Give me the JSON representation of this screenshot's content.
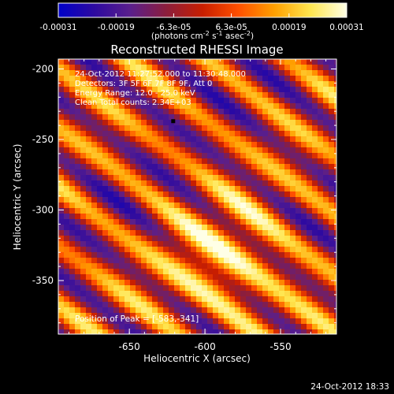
{
  "colorbar": {
    "ticks": [
      "-0.00031",
      "-0.00019",
      "-6.3e-05",
      "6.3e-05",
      "0.00019",
      "0.00031"
    ],
    "unit_label": "(photons cm",
    "unit_exp1": "-2",
    "unit_mid": " s",
    "unit_exp2": "-1",
    "unit_end": " asec",
    "unit_exp3": "-2",
    "unit_close": ")",
    "range": [
      -0.00031,
      0.00031
    ],
    "colors": [
      "#0000c8",
      "#2d0aa0",
      "#5a1f8c",
      "#8c1e3c",
      "#c81e00",
      "#ff5000",
      "#ffa000",
      "#ffe650",
      "#ffffe6"
    ]
  },
  "chart_data": {
    "type": "heatmap",
    "title": "Reconstructed RHESSI Image",
    "xlabel": "Heliocentric X (arcsec)",
    "ylabel": "Heliocentric Y (arcsec)",
    "xlim": [
      -697,
      -513
    ],
    "ylim": [
      -388,
      -193
    ],
    "xticks": [
      -650,
      -600,
      -550
    ],
    "xtick_labels": [
      "-650",
      "-600",
      "-550"
    ],
    "yticks": [
      -200,
      -250,
      -300,
      -350
    ],
    "ytick_labels": [
      "-200",
      "-250",
      "-300",
      "-350"
    ],
    "peak_position": [
      -583,
      -341
    ],
    "annotations": [
      "24-Oct-2012 11:27:52.000 to 11:30:48.000",
      "Detectors: 3F 5F 6F 7F 8F 9F, Att 0",
      "Energy Range: 12.0 - 25.0 keV",
      "Clean     Total counts: 2.34E+03"
    ],
    "peak_label": "Position of Peak = [-583,-341]"
  },
  "footer": {
    "timestamp": "24-Oct-2012 18:33"
  }
}
